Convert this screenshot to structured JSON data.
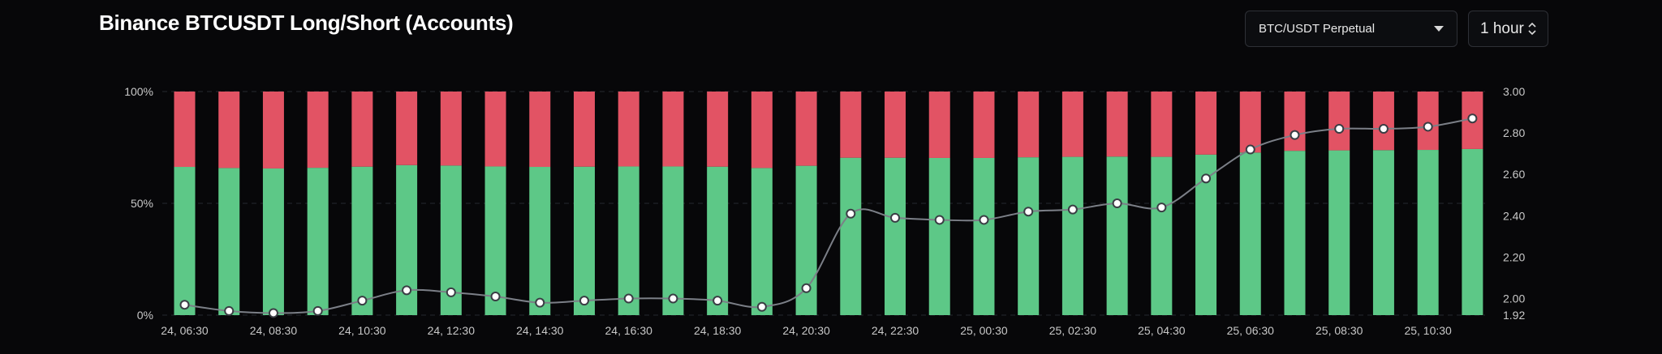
{
  "header": {
    "title": "Binance BTCUSDT Long/Short (Accounts)",
    "market_select": "BTC/USDT Perpetual",
    "interval_select": "1 hour"
  },
  "icons": {
    "market_caret": "chevron-down-icon",
    "interval_stepper": "updown-chevron-icon"
  },
  "colors": {
    "long": "#5dc887",
    "short": "#e25364",
    "ratio_line": "#7b7f87",
    "background": "#070709"
  },
  "chart_data": {
    "type": "bar",
    "stacked": true,
    "x_tick_labels": [
      "24, 06:30",
      "24, 08:30",
      "24, 10:30",
      "24, 12:30",
      "24, 14:30",
      "24, 16:30",
      "24, 18:30",
      "24, 20:30",
      "24, 22:30",
      "25, 00:30",
      "25, 02:30",
      "25, 04:30",
      "25, 06:30",
      "25, 08:30",
      "25, 10:30"
    ],
    "y_left_ticks": [
      "0%",
      "50%",
      "100%"
    ],
    "y_left_range": [
      0,
      100
    ],
    "y_right_ticks": [
      "1.92",
      "2.00",
      "2.20",
      "2.40",
      "2.60",
      "2.80",
      "3.00"
    ],
    "y_right_range": [
      1.92,
      3.0
    ],
    "grid": true,
    "bar_count": 30,
    "series": [
      {
        "values": [
          66.3,
          65.8,
          65.6,
          65.9,
          66.4,
          67.1,
          66.9,
          66.5,
          66.3,
          66.4,
          66.5,
          66.5,
          66.4,
          65.8,
          66.8,
          70.4,
          70.4,
          70.3,
          70.3,
          70.6,
          70.8,
          70.9,
          70.8,
          71.8,
          72.7,
          73.5,
          73.7,
          73.8,
          73.9,
          74.3
        ]
      },
      {
        "values": [
          33.7,
          34.2,
          34.4,
          34.1,
          33.6,
          32.9,
          33.1,
          33.5,
          33.7,
          33.6,
          33.5,
          33.5,
          33.6,
          34.2,
          33.2,
          29.6,
          29.6,
          29.7,
          29.7,
          29.4,
          29.2,
          29.1,
          29.2,
          28.2,
          27.3,
          26.5,
          26.3,
          26.2,
          26.1,
          25.7
        ]
      },
      {
        "axis": "right",
        "type": "line",
        "values": [
          1.97,
          1.94,
          1.93,
          1.94,
          1.99,
          2.04,
          2.03,
          2.01,
          1.98,
          1.99,
          2.0,
          2.0,
          1.99,
          1.96,
          2.05,
          2.41,
          2.39,
          2.38,
          2.38,
          2.42,
          2.43,
          2.46,
          2.44,
          2.58,
          2.72,
          2.79,
          2.82,
          2.82,
          2.83,
          2.87
        ]
      }
    ]
  }
}
